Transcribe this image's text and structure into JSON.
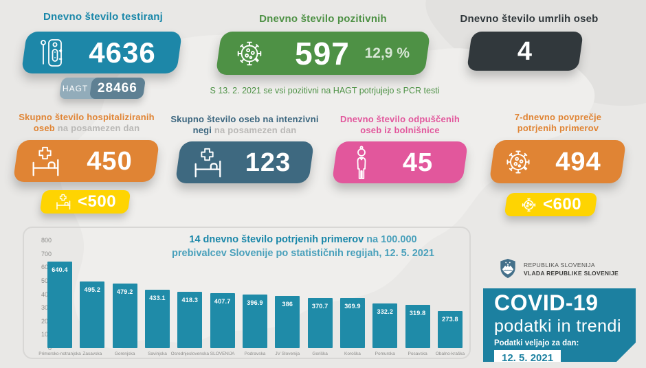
{
  "colors": {
    "background": "#e9e8e6",
    "teal": "#1d87a8",
    "green": "#4e9145",
    "dark": "#31383c",
    "orange": "#e08434",
    "slate": "#3e6980",
    "pink": "#e2579c",
    "yellow": "#fed402",
    "hagt_light": "#92acba",
    "hagt_dark": "#5e8093",
    "bar": "#1f8ba8",
    "covid_card": "#1c80a0",
    "gray_text": "#8b8b89"
  },
  "top_cards": {
    "testing": {
      "title": "Dnevno število testiranj",
      "value": "4636",
      "hagt_label": "HAGT",
      "hagt_value": "28466",
      "icon": "test-kit-icon"
    },
    "positive": {
      "title": "Dnevno število pozitivnih",
      "value": "597",
      "percent": "12,9 %",
      "note": "S 13. 2. 2021 se vsi pozitivni na HAGT potrjujejo s PCR testi",
      "icon": "virus-icon"
    },
    "deaths": {
      "title": "Dnevno število umrlih oseb",
      "value": "4"
    }
  },
  "mid_cards": {
    "hospitalized": {
      "title_line1": "Skupno število hospitaliziranih",
      "title_line2_bold": "oseb",
      "title_line2_gray": " na posamezen dan",
      "value": "450",
      "threshold": "<500",
      "icon": "hospital-bed-icon"
    },
    "icu": {
      "title_line1": "Skupno število oseb na intenzivni",
      "title_line2_bold": "negi",
      "title_line2_gray": " na posamezen dan",
      "value": "123",
      "icon": "hospital-bed-icon"
    },
    "discharged": {
      "title_line1": "Dnevno število odpuščenih",
      "title_line2": "oseb iz bolnišnice",
      "value": "45",
      "icon": "person-icon"
    },
    "avg7": {
      "title_line1": "7-dnevno povprečje",
      "title_line2": "potrjenih primerov",
      "value": "494",
      "threshold": "<600",
      "icon": "virus-icon"
    }
  },
  "chart_data": {
    "type": "bar",
    "title_bold": "14 dnevno število potrjenih primerov",
    "title_rest": " na 100.000",
    "title_line2": "prebivalcev Slovenije po statističnih regijah, 12. 5. 2021",
    "categories": [
      "Primorsko-notranjska",
      "Zasavska",
      "Gorenjska",
      "Savinjska",
      "Osrednjeslovenska",
      "SLOVENIJA",
      "Podravska",
      "JV Slovenija",
      "Goriška",
      "Koroška",
      "Pomurska",
      "Posavska",
      "Obalno-kraška"
    ],
    "values": [
      640.4,
      495.2,
      479.2,
      433.1,
      418.3,
      407.7,
      396.9,
      386,
      370.7,
      369.9,
      332.2,
      319.8,
      273.8
    ],
    "xlabel": "",
    "ylabel": "",
    "ylim": [
      0,
      800
    ],
    "yticks": [
      800,
      700,
      600,
      500,
      400,
      300,
      200,
      100,
      0
    ],
    "grid": false,
    "legend": "none",
    "bar_color": "#1f8ba8"
  },
  "footer": {
    "gov_line1": "REPUBLIKA SLOVENIJA",
    "gov_line2": "VLADA REPUBLIKE SLOVENIJE",
    "covid_title": "COVID-19",
    "covid_subtitle": "podatki in trendi",
    "date_label": "Podatki veljajo za dan:",
    "date_value": "12. 5. 2021"
  }
}
